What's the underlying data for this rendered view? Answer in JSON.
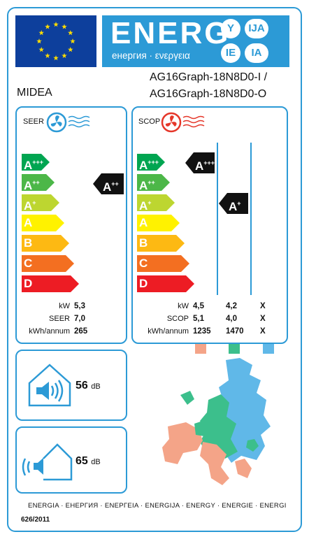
{
  "header": {
    "energy_word": "ENERG",
    "energy_subtitle": "енергия · ενεργεια",
    "lang_badges": [
      "Y",
      "IJA",
      "IE",
      "IA"
    ]
  },
  "product": {
    "brand": "MIDEA",
    "model_line_1": "AG16Graph-18N8D0-I /",
    "model_line_2": "AG16Graph-18N8D0-O"
  },
  "scale_labels": [
    "A+++",
    "A++",
    "A+",
    "A",
    "B",
    "C",
    "D"
  ],
  "scale_colors": [
    "#00a551",
    "#4cb748",
    "#bdd630",
    "#fff200",
    "#fdb913",
    "#f36f21",
    "#ed1c24"
  ],
  "cooling": {
    "title": "SEER",
    "class": "A++",
    "rows": [
      {
        "label": "kW",
        "value": "5,3"
      },
      {
        "label": "SEER",
        "value": "7,0"
      },
      {
        "label": "kWh/annum",
        "value": "265"
      }
    ]
  },
  "heating": {
    "title": "SCOP",
    "classes": [
      "A+++",
      "A+"
    ],
    "rows": [
      {
        "label": "kW",
        "values": [
          "4,5",
          "4,2",
          "X"
        ]
      },
      {
        "label": "SCOP",
        "values": [
          "5,1",
          "4,0",
          "X"
        ]
      },
      {
        "label": "kWh/annum",
        "values": [
          "1235",
          "1470",
          "X"
        ]
      }
    ],
    "zone_colors": [
      "#f4a488",
      "#3cbf8c",
      "#60b8e8"
    ]
  },
  "noise": {
    "indoor_value": "56",
    "indoor_unit": "dB",
    "outdoor_value": "65",
    "outdoor_unit": "dB"
  },
  "footer": {
    "languages": "ENERGIA · ЕНЕРГИЯ · ΕΝΕΡΓΕΙΑ · ENERGIJA · ENERGY · ENERGIE · ENERGI",
    "regulation": "626/2011"
  },
  "colors": {
    "accent": "#2c9ad6",
    "eu_blue": "#0d3f9c",
    "eu_star": "#ffdd00",
    "indicator": "#111111"
  },
  "icons": [
    "eu-flag-icon",
    "fan-cooling-icon",
    "fan-heating-icon",
    "indoor-noise-icon",
    "outdoor-noise-icon",
    "europe-map-icon"
  ]
}
